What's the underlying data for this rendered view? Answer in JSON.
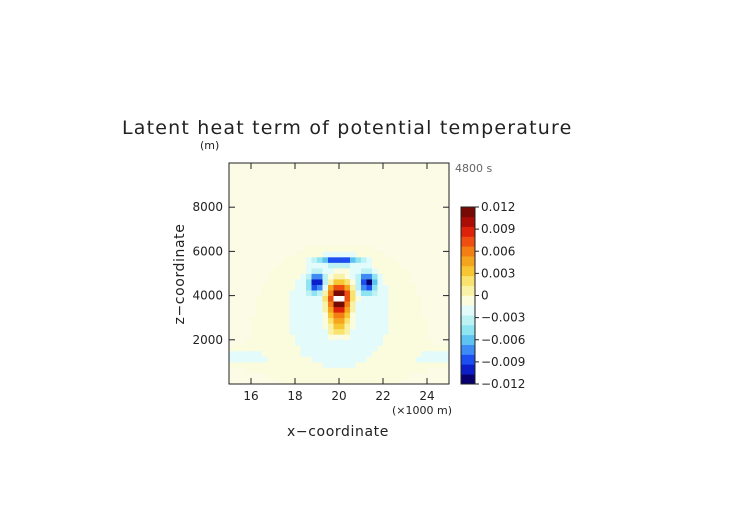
{
  "chart_data": {
    "type": "heatmap",
    "title": "Latent heat term of potential temperature",
    "time_label": "4800 s",
    "xlabel": "x−coordinate",
    "ylabel": "z−coordinate",
    "x_unit": "(×1000 m)",
    "y_unit": "(m)",
    "xlim": [
      15,
      25
    ],
    "ylim": [
      0,
      10000
    ],
    "x_ticks": [
      "16",
      "18",
      "20",
      "22",
      "24"
    ],
    "y_ticks": [
      "2000",
      "4000",
      "6000",
      "8000"
    ],
    "colorbar": {
      "ticks": [
        "0.012",
        "0.009",
        "0.006",
        "0.003",
        "0",
        "−0.003",
        "−0.006",
        "−0.009",
        "−0.012"
      ],
      "range": [
        -0.012,
        0.012
      ],
      "colors": [
        "#08006e",
        "#0b1ec8",
        "#1d4ef0",
        "#3e8bf6",
        "#5fc3f2",
        "#8ee4f0",
        "#bdf2f5",
        "#e4fbfb",
        "#fbfbde",
        "#f9f2a6",
        "#f9e36e",
        "#f8c632",
        "#f5a41e",
        "#f27e14",
        "#ee4f10",
        "#dc2209",
        "#aa0c06",
        "#780a06"
      ]
    },
    "background_value": 0.0,
    "features": [
      {
        "kind": "positive_heating_core",
        "x_km": 20.0,
        "z_m": 4000,
        "peak": 0.012,
        "note": "saturated core (white, exceeds colorbar max)"
      },
      {
        "kind": "positive_plume",
        "x_km": 20.0,
        "z_range_m": [
          2500,
          5400
        ],
        "value": 0.006
      },
      {
        "kind": "negative_lobe",
        "x_km": 19.0,
        "z_m": 4600,
        "value": -0.009
      },
      {
        "kind": "negative_lobe",
        "x_km": 21.3,
        "z_m": 4600,
        "value": -0.009
      },
      {
        "kind": "negative_cap",
        "x_km": 20.0,
        "z_m": 5600,
        "value": -0.008
      },
      {
        "kind": "weak_negative_halo",
        "x_km": 20.0,
        "z_range_m": [
          200,
          6300
        ],
        "value": -0.0015
      }
    ]
  }
}
